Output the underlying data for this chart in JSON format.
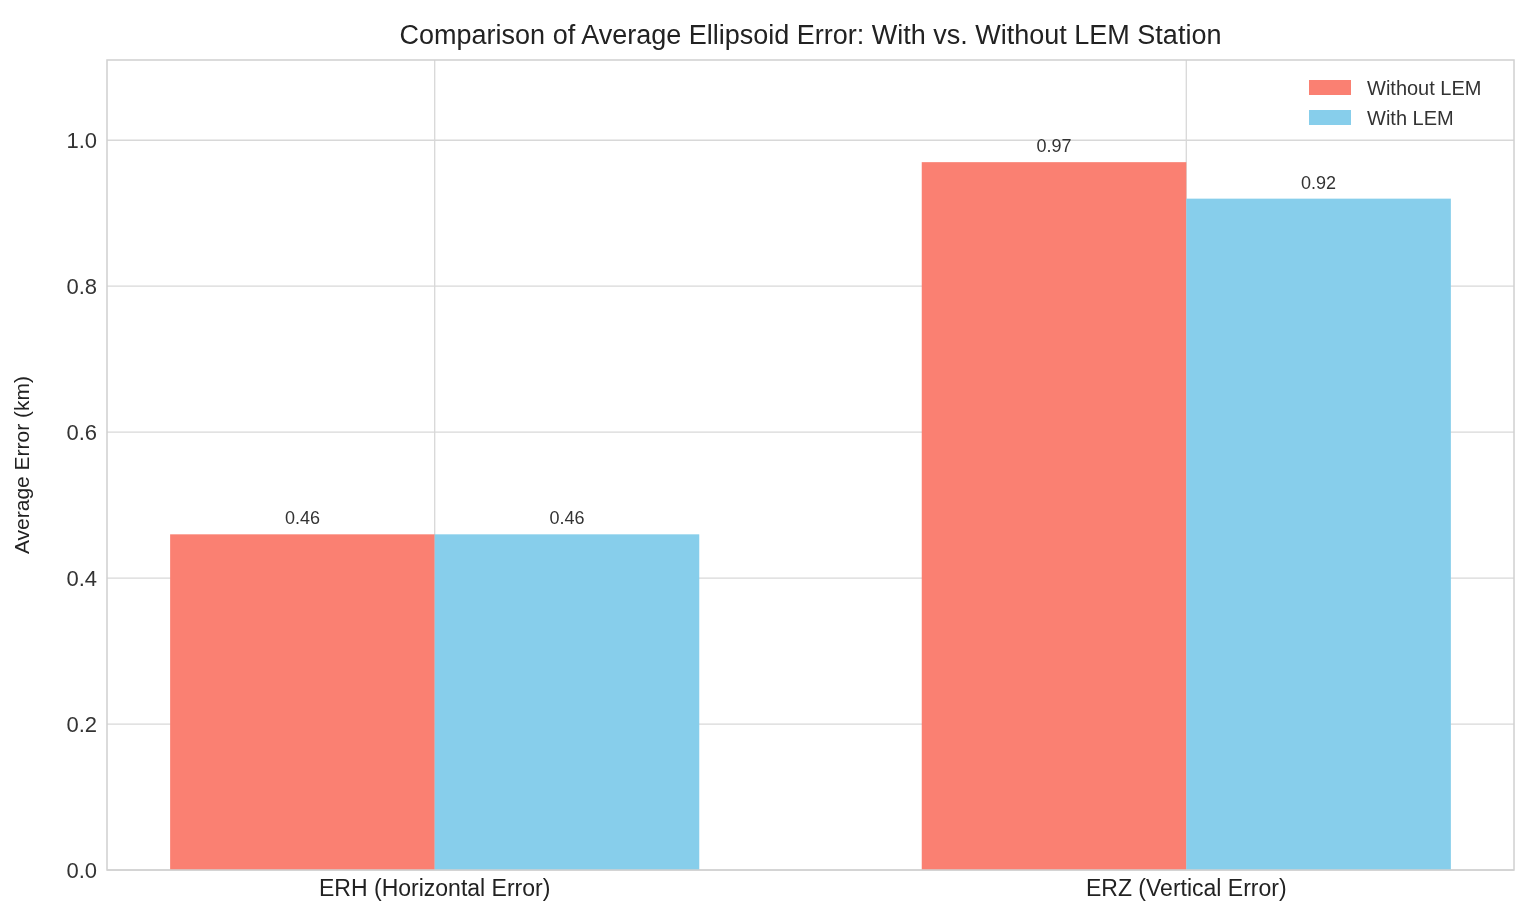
{
  "chart_data": {
    "type": "bar",
    "title": "Comparison of Average Ellipsoid Error: With vs. Without LEM Station",
    "ylabel": "Average Error (km)",
    "categories": [
      "ERH (Horizontal Error)",
      "ERZ (Vertical Error)"
    ],
    "series": [
      {
        "name": "Without LEM",
        "color": "#fa8072",
        "values": [
          0.46,
          0.97
        ]
      },
      {
        "name": "With LEM",
        "color": "#87ceeb",
        "values": [
          0.46,
          0.92
        ]
      }
    ],
    "ylim": [
      0,
      1.11
    ],
    "yticks": [
      {
        "value": 0,
        "label": "0.0"
      },
      0.2,
      0.4,
      0.6,
      0.8,
      {
        "value": 1,
        "label": "1.0"
      }
    ],
    "grid": true,
    "legend": "top right",
    "data_labels": true
  }
}
